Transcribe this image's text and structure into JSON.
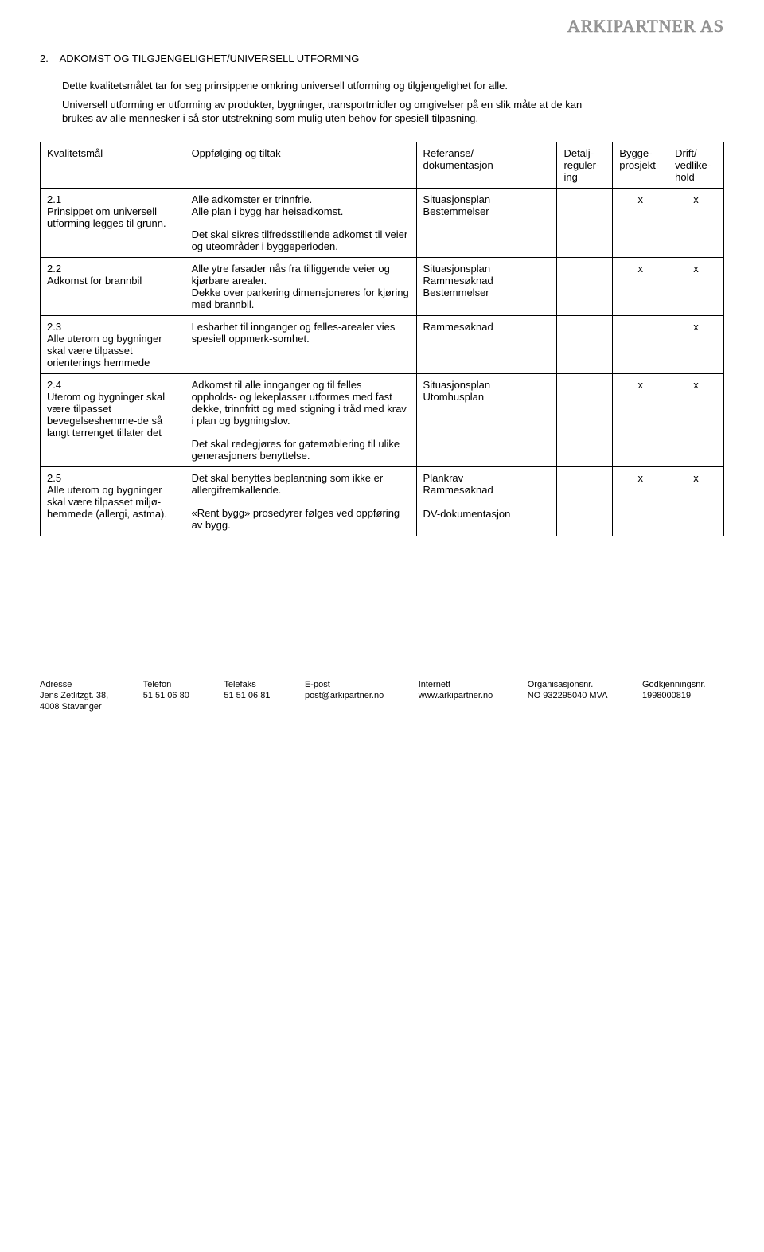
{
  "brand": "ARKIPARTNER AS",
  "section": {
    "number": "2.",
    "title": "ADKOMST OG TILGJENGELIGHET/UNIVERSELL UTFORMING"
  },
  "intro": [
    "Dette kvalitetsmålet tar for seg prinsippene omkring universell utforming og tilgjengelighet for alle.",
    "Universell utforming er utforming av produkter, bygninger, transportmidler og omgivelser på en slik måte at de kan brukes av alle mennesker i så stor utstrekning som mulig uten behov for spesiell tilpasning."
  ],
  "headers": {
    "col1": "Kvalitetsmål",
    "col2": "Oppfølging og tiltak",
    "col3": "Referanse/\ndokumentasjon",
    "col4": "Detalj-\nreguler-\ning",
    "col5": "Bygge-\nprosjekt",
    "col6": "Drift/\nvedlike-\nhold"
  },
  "rows": [
    {
      "goal": "2.1\nPrinsippet om universell utforming legges til grunn.",
      "action": "Alle adkomster er trinnfrie.\nAlle plan i bygg har heisadkomst.",
      "action2": "Det skal sikres tilfredsstillende adkomst til veier og uteområder i byggeperioden.",
      "ref": "Situasjonsplan\nBestemmelser",
      "c4": "",
      "c5": "x",
      "c6": "x"
    },
    {
      "goal": "2.2\nAdkomst for brannbil",
      "action": "Alle ytre fasader nås fra tilliggende veier og kjørbare arealer.\nDekke over parkering dimensjoneres for kjøring med brannbil.",
      "action2": "",
      "ref": "Situasjonsplan\nRammesøknad\nBestemmelser",
      "c4": "",
      "c5": "x",
      "c6": "x"
    },
    {
      "goal": "2.3\nAlle uterom og bygninger skal være tilpasset orienterings hemmede",
      "action": "Lesbarhet til innganger og felles-arealer vies spesiell oppmerk-somhet.",
      "action2": "",
      "ref": "Rammesøknad",
      "c4": "",
      "c5": "",
      "c6": "x"
    },
    {
      "goal": "2.4\nUterom og bygninger skal være tilpasset bevegelseshemme-de så langt terrenget tillater det",
      "action": "Adkomst til alle innganger og til felles oppholds- og lekeplasser utformes med fast dekke, trinnfritt og med stigning i tråd med krav i plan og bygningslov.",
      "action2": "Det skal redegjøres for gatemøblering til ulike generasjoners benyttelse.",
      "ref": "Situasjonsplan\nUtomhusplan",
      "c4": "",
      "c5": "x",
      "c6": "x"
    },
    {
      "goal": "2.5\nAlle uterom og bygninger skal være tilpasset miljø-hemmede (allergi, astma).",
      "action": "Det skal benyttes beplantning som ikke er allergifremkallende.",
      "action2": "«Rent bygg» prosedyrer følges ved oppføring av bygg.",
      "ref": "Plankrav\nRammesøknad\n\nDV-dokumentasjon",
      "c4": "",
      "c5": "x",
      "c6": "x"
    }
  ],
  "footer": {
    "labels": {
      "addr": "Adresse",
      "tel": "Telefon",
      "fax": "Telefaks",
      "email": "E-post",
      "web": "Internett",
      "org": "Organisasjonsnr.",
      "approval": "Godkjenningsnr."
    },
    "values": {
      "addr1": "Jens Zetlitzgt. 38,",
      "addr2": "4008 Stavanger",
      "tel": "51 51 06 80",
      "fax": "51 51 06 81",
      "email": "post@arkipartner.no",
      "web": "www.arkipartner.no",
      "org": "NO 932295040 MVA",
      "approval": "1998000819"
    }
  }
}
